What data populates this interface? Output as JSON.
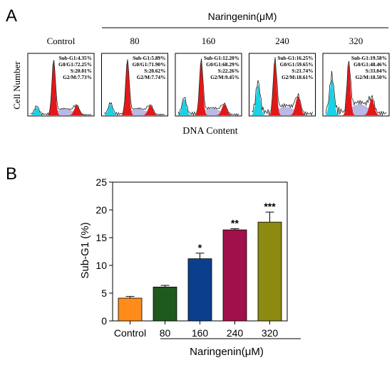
{
  "panel_a": {
    "label": "A",
    "treatment_label": "Naringenin(μM)",
    "ylabel": "Cell Number",
    "xlabel": "DNA Content",
    "histograms": [
      {
        "group": "Control",
        "stats": [
          "Sub-G1:4.35%",
          "G0/G1:72.25%",
          "S:20.01%",
          "G2/M:7.73%"
        ],
        "subg1": 0.15,
        "g1": 1.0,
        "s": 0.22,
        "g2": 0.18,
        "noise": 0.04
      },
      {
        "group": "80",
        "stats": [
          "Sub-G1:5.89%",
          "G0/G1:71.90%",
          "S:20.62%",
          "G2/M:7.74%"
        ],
        "subg1": 0.2,
        "g1": 1.0,
        "s": 0.22,
        "g2": 0.18,
        "noise": 0.05
      },
      {
        "group": "160",
        "stats": [
          "Sub-G1:12.20%",
          "G0/G1:68.29%",
          "S:22.26%",
          "G2/M:9.45%"
        ],
        "subg1": 0.3,
        "g1": 1.0,
        "s": 0.24,
        "g2": 0.2,
        "noise": 0.06
      },
      {
        "group": "240",
        "stats": [
          "Sub-G1:16.25%",
          "G0/G1:59.65%",
          "S:21.74%",
          "G2/M:18.61%"
        ],
        "subg1": 0.55,
        "g1": 1.0,
        "s": 0.3,
        "g2": 0.34,
        "noise": 0.12
      },
      {
        "group": "320",
        "stats": [
          "Sub-G1:19.58%",
          "G0/G1:48.46%",
          "S:33.04%",
          "G2/M:18.50%"
        ],
        "subg1": 0.65,
        "g1": 0.95,
        "s": 0.4,
        "g2": 0.3,
        "noise": 0.15
      }
    ]
  },
  "chart_data": {
    "type": "bar",
    "panel_label": "B",
    "categories": [
      "Control",
      "80",
      "160",
      "240",
      "320"
    ],
    "values": [
      4.1,
      6.1,
      11.2,
      16.4,
      17.8
    ],
    "errors": [
      0.3,
      0.3,
      1.0,
      0.2,
      1.8
    ],
    "significance": [
      "",
      "",
      "*",
      "**",
      "***"
    ],
    "colors": [
      "#FF8C1A",
      "#1E5A1E",
      "#0A3F8C",
      "#A0104A",
      "#8C8A10"
    ],
    "ylabel": "Sub-G1 (%)",
    "treatment_label": "Naringenin(μM)",
    "ylim": [
      0,
      25
    ],
    "yticks": [
      0,
      5,
      10,
      15,
      20,
      25
    ]
  }
}
